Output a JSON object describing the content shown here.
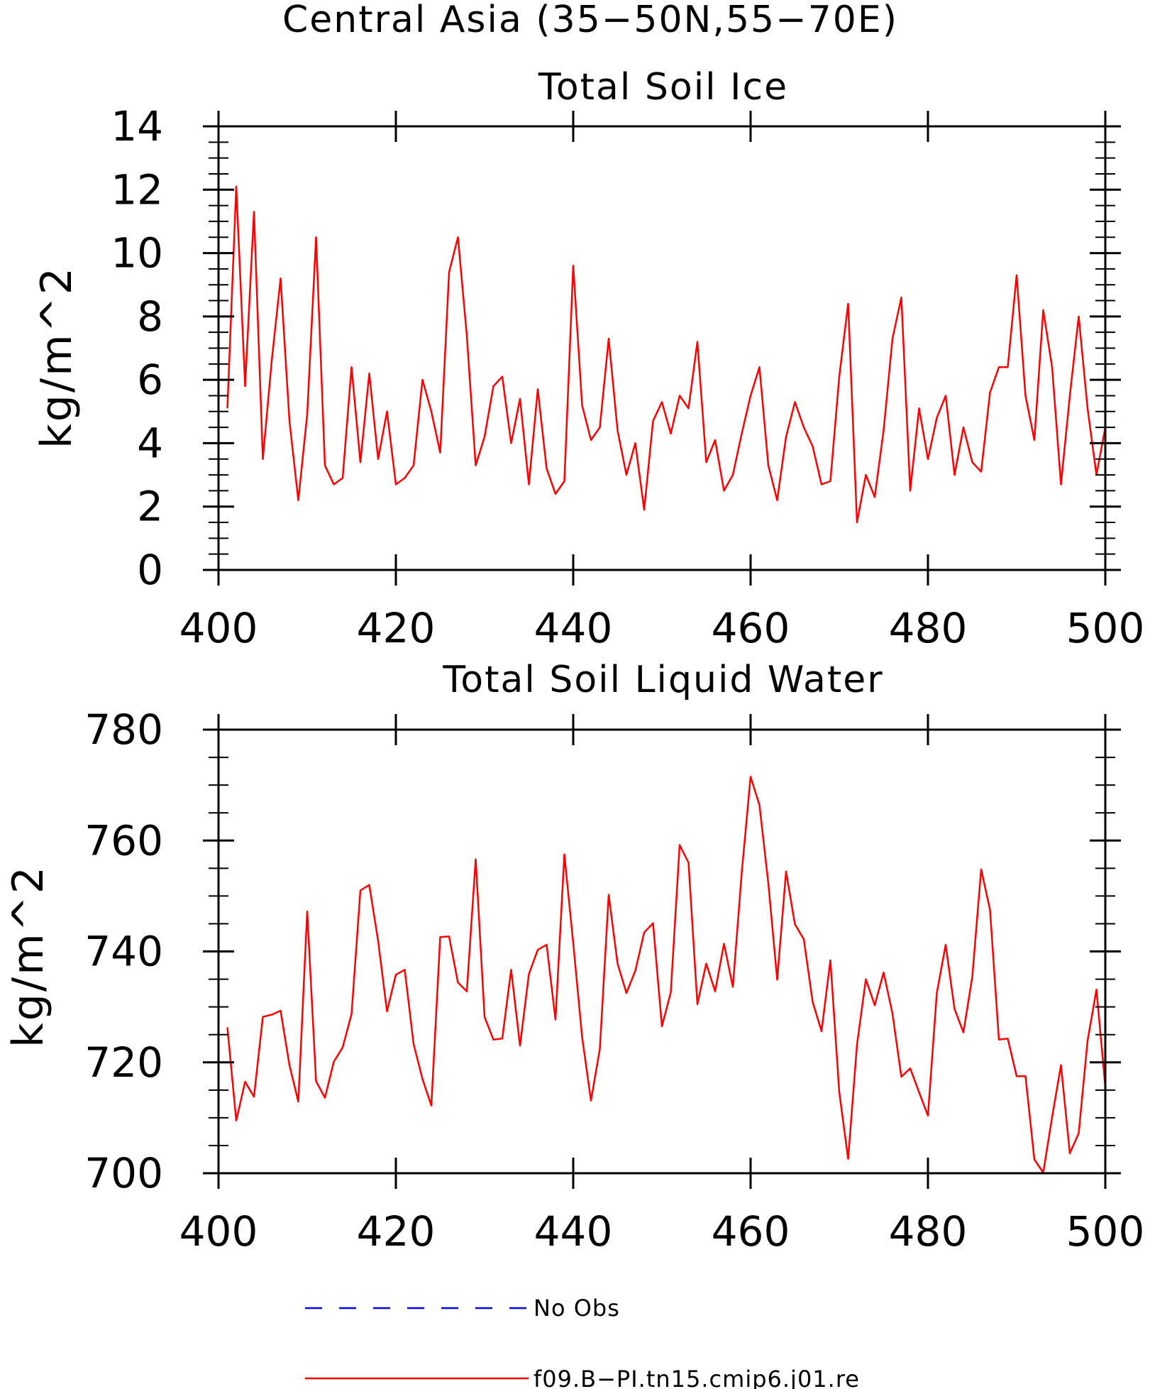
{
  "figure": {
    "title": "Central Asia (35−50N,55−70E)"
  },
  "colors": {
    "model": "#ff0000",
    "obs": "#0000ff",
    "axis": "#000000"
  },
  "chart_data": [
    {
      "type": "line",
      "title": "Total Soil Ice",
      "xlabel": "",
      "ylabel": "kg/m^2",
      "xlim": [
        400,
        500
      ],
      "ylim": [
        0,
        14
      ],
      "xticks": [
        400,
        420,
        440,
        460,
        480,
        500
      ],
      "yticks": [
        0,
        2,
        4,
        6,
        8,
        10,
        12,
        14
      ],
      "grid": false,
      "series": [
        {
          "name": "f09.B−PI.tn15.cmip6.j01.re",
          "x_start": 401,
          "x_step": 1,
          "values": [
            5.1,
            12.1,
            5.8,
            11.3,
            3.5,
            6.6,
            9.2,
            4.7,
            2.2,
            4.9,
            10.5,
            3.3,
            2.7,
            2.9,
            6.4,
            3.4,
            6.2,
            3.5,
            5.0,
            2.7,
            2.9,
            3.3,
            6.0,
            5.0,
            3.7,
            9.4,
            10.5,
            7.4,
            3.3,
            4.2,
            5.8,
            6.1,
            4.0,
            5.4,
            2.7,
            5.7,
            3.2,
            2.4,
            2.8,
            9.6,
            5.2,
            4.1,
            4.5,
            7.3,
            4.4,
            3.0,
            4.0,
            1.9,
            4.7,
            5.3,
            4.3,
            5.5,
            5.1,
            7.2,
            3.4,
            4.1,
            2.5,
            3.0,
            4.3,
            5.5,
            6.4,
            3.3,
            2.2,
            4.2,
            5.3,
            4.5,
            3.9,
            2.7,
            2.8,
            6.1,
            8.4,
            1.5,
            3.0,
            2.3,
            4.4,
            7.3,
            8.6,
            2.5,
            5.1,
            3.5,
            4.8,
            5.5,
            3.0,
            4.5,
            3.4,
            3.1,
            5.6,
            6.4,
            6.4,
            9.3,
            5.5,
            4.1,
            8.2,
            6.4,
            2.7,
            5.5,
            8.0,
            5.1,
            3.0,
            4.5
          ]
        }
      ]
    },
    {
      "type": "line",
      "title": "Total Soil Liquid Water",
      "xlabel": "",
      "ylabel": "kg/m^2",
      "xlim": [
        400,
        500
      ],
      "ylim": [
        700,
        780
      ],
      "xticks": [
        400,
        420,
        440,
        460,
        480,
        500
      ],
      "yticks": [
        700,
        720,
        740,
        760,
        780
      ],
      "grid": false,
      "series": [
        {
          "name": "f09.B−PI.tn15.cmip6.j01.re",
          "x_start": 401,
          "x_step": 1,
          "values": [
            726.3,
            709.5,
            716.5,
            713.8,
            728.2,
            728.6,
            729.3,
            719.5,
            712.9,
            747.2,
            716.6,
            713.6,
            720.1,
            722.7,
            728.7,
            751.0,
            752.0,
            741.9,
            729.2,
            735.8,
            736.7,
            723.3,
            717.0,
            712.2,
            742.6,
            742.7,
            734.4,
            732.8,
            756.6,
            728.2,
            724.1,
            724.3,
            736.7,
            723.0,
            735.9,
            740.3,
            741.2,
            727.7,
            757.5,
            741.5,
            724.6,
            713.1,
            722.4,
            750.2,
            737.8,
            732.5,
            736.5,
            743.4,
            745.1,
            726.5,
            732.6,
            759.2,
            756.0,
            730.5,
            737.8,
            732.8,
            741.4,
            733.6,
            754.2,
            771.5,
            766.4,
            752.3,
            734.9,
            754.4,
            744.9,
            742.2,
            730.9,
            725.6,
            738.4,
            714.6,
            702.6,
            723.2,
            735.0,
            730.3,
            736.2,
            728.8,
            717.4,
            718.9,
            714.6,
            710.4,
            732.5,
            741.2,
            729.6,
            725.4,
            735.4,
            754.8,
            747.5,
            724.1,
            724.3,
            717.5,
            717.5,
            702.5,
            700.1,
            710.1,
            719.5,
            703.6,
            707.2,
            723.9,
            733.1,
            715.6
          ]
        }
      ]
    }
  ],
  "legend": {
    "position": "bottom-center",
    "items": [
      {
        "label": "No Obs",
        "style": "dashed",
        "color": "#0000ff"
      },
      {
        "label": "f09.B−PI.tn15.cmip6.j01.re",
        "style": "solid",
        "color": "#ff0000"
      }
    ]
  }
}
